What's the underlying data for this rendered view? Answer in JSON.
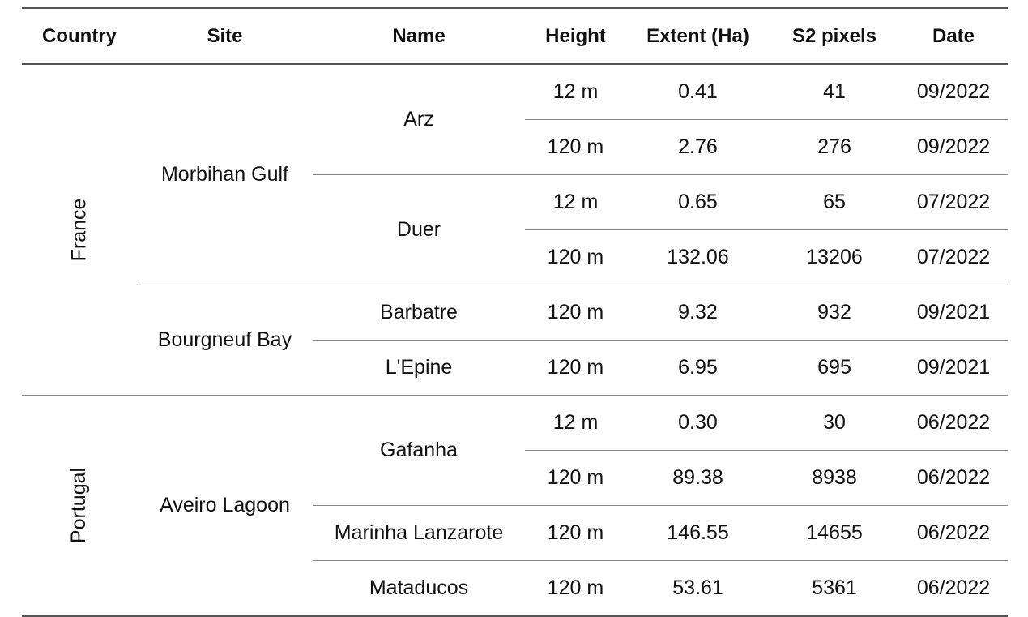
{
  "headers": [
    "Country",
    "Site",
    "Name",
    "Height",
    "Extent (Ha)",
    "S2 pixels",
    "Date"
  ],
  "countries": [
    "France",
    "Portugal"
  ],
  "sites": [
    "Morbihan Gulf",
    "Bourgneuf Bay",
    "Aveiro Lagoon"
  ],
  "names": [
    "Arz",
    "Duer",
    "Barbatre",
    "L'Epine",
    "Gafanha",
    "Marinha Lanzarote",
    "Mataducos"
  ],
  "rows": [
    {
      "height": "12 m",
      "extent": "0.41",
      "pixels": "41",
      "date": "09/2022"
    },
    {
      "height": "120 m",
      "extent": "2.76",
      "pixels": "276",
      "date": "09/2022"
    },
    {
      "height": "12 m",
      "extent": "0.65",
      "pixels": "65",
      "date": "07/2022"
    },
    {
      "height": "120 m",
      "extent": "132.06",
      "pixels": "13206",
      "date": "07/2022"
    },
    {
      "height": "120 m",
      "extent": "9.32",
      "pixels": "932",
      "date": "09/2021"
    },
    {
      "height": "120 m",
      "extent": "6.95",
      "pixels": "695",
      "date": "09/2021"
    },
    {
      "height": "12 m",
      "extent": "0.30",
      "pixels": "30",
      "date": "06/2022"
    },
    {
      "height": "120 m",
      "extent": "89.38",
      "pixels": "8938",
      "date": "06/2022"
    },
    {
      "height": "120 m",
      "extent": "146.55",
      "pixels": "14655",
      "date": "06/2022"
    },
    {
      "height": "120 m",
      "extent": "53.61",
      "pixels": "5361",
      "date": "06/2022"
    }
  ]
}
